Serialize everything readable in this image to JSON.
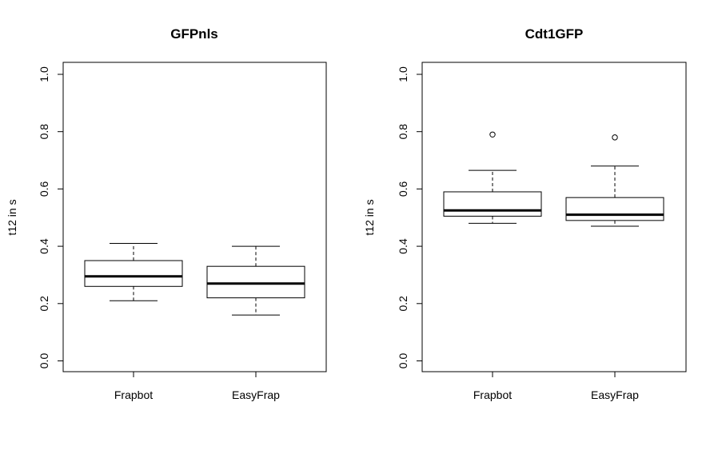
{
  "chart_data": [
    {
      "type": "box",
      "title": "GFPnls",
      "ylabel": "t12 in s",
      "xlabel": "",
      "ylim": [
        0,
        1.0
      ],
      "yticks": [
        "0.0",
        "0.2",
        "0.4",
        "0.6",
        "0.8",
        "1.0"
      ],
      "categories": [
        "Frapbot",
        "EasyFrap"
      ],
      "boxes": [
        {
          "label": "Frapbot",
          "whisker_low": 0.21,
          "q1": 0.26,
          "median": 0.295,
          "q3": 0.35,
          "whisker_high": 0.41,
          "outliers": []
        },
        {
          "label": "EasyFrap",
          "whisker_low": 0.16,
          "q1": 0.22,
          "median": 0.27,
          "q3": 0.33,
          "whisker_high": 0.4,
          "outliers": []
        }
      ]
    },
    {
      "type": "box",
      "title": "Cdt1GFP",
      "ylabel": "t12 in s",
      "xlabel": "",
      "ylim": [
        0,
        1.0
      ],
      "yticks": [
        "0.0",
        "0.2",
        "0.4",
        "0.6",
        "0.8",
        "1.0"
      ],
      "categories": [
        "Frapbot",
        "EasyFrap"
      ],
      "boxes": [
        {
          "label": "Frapbot",
          "whisker_low": 0.48,
          "q1": 0.505,
          "median": 0.525,
          "q3": 0.59,
          "whisker_high": 0.665,
          "outliers": [
            0.79
          ]
        },
        {
          "label": "EasyFrap",
          "whisker_low": 0.47,
          "q1": 0.49,
          "median": 0.51,
          "q3": 0.57,
          "whisker_high": 0.68,
          "outliers": [
            0.78
          ]
        }
      ]
    }
  ]
}
